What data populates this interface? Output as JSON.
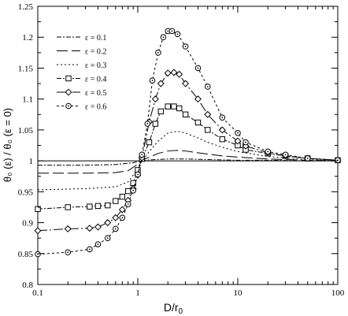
{
  "chart_data": {
    "type": "line",
    "xscale": "log",
    "xlim": [
      0.1,
      100
    ],
    "ylim": [
      0.8,
      1.25
    ],
    "xlabel_main": "D/r",
    "xlabel_sub": "0",
    "ylabel": "θ₀ (ε) / θ₀ (ε = 0)",
    "xticks": [
      0.1,
      1,
      10,
      100
    ],
    "xtick_labels": [
      "0.1",
      "1",
      "10",
      "100"
    ],
    "yticks": [
      0.8,
      0.85,
      0.9,
      0.95,
      1.0,
      1.05,
      1.1,
      1.15,
      1.2,
      1.25
    ],
    "ytick_labels": [
      "0.8",
      "0.85",
      "0.9",
      "0.95",
      "1",
      "1.05",
      "1.1",
      "1.15",
      "1.2",
      "1.25"
    ],
    "reference_line": 1.0,
    "grid": false,
    "legend_position": "top-left",
    "series": [
      {
        "name": "ε = 0.1",
        "dash": "6,2,2,2",
        "marker": "none",
        "x": [
          0.1,
          0.3,
          0.6,
          0.9,
          1.0,
          1.2,
          1.5,
          2.0,
          2.5,
          3.0,
          5.0,
          10,
          20,
          50,
          100
        ],
        "y": [
          0.993,
          0.993,
          0.994,
          0.997,
          0.999,
          1.001,
          1.002,
          1.003,
          1.003,
          1.003,
          1.002,
          1.001,
          1.001,
          1.0,
          1.0
        ]
      },
      {
        "name": "ε = 0.2",
        "dash": "14,5",
        "marker": "none",
        "x": [
          0.1,
          0.3,
          0.6,
          0.8,
          0.95,
          1.1,
          1.3,
          1.6,
          2.0,
          2.5,
          3.0,
          4.0,
          5.0,
          7.0,
          10,
          20,
          50,
          100
        ],
        "y": [
          0.98,
          0.98,
          0.981,
          0.984,
          0.992,
          1.001,
          1.006,
          1.012,
          1.016,
          1.017,
          1.016,
          1.013,
          1.011,
          1.008,
          1.006,
          1.003,
          1.001,
          1.0
        ]
      },
      {
        "name": "ε = 0.3",
        "dash": "2,3",
        "marker": "none",
        "x": [
          0.1,
          0.3,
          0.6,
          0.8,
          0.95,
          1.1,
          1.3,
          1.6,
          2.0,
          2.5,
          3.0,
          4.0,
          5.0,
          7.0,
          10,
          20,
          50,
          100
        ],
        "y": [
          0.953,
          0.955,
          0.958,
          0.966,
          0.982,
          1.0,
          1.015,
          1.032,
          1.045,
          1.048,
          1.045,
          1.037,
          1.03,
          1.022,
          1.015,
          1.007,
          1.002,
          1.0
        ]
      },
      {
        "name": "ε = 0.4",
        "dash": "6,2,2,2",
        "marker": "square",
        "x": [
          0.1,
          0.2,
          0.33,
          0.4,
          0.5,
          0.6,
          0.7,
          0.8,
          0.9,
          1.0,
          1.1,
          1.3,
          1.5,
          1.7,
          2.0,
          2.3,
          2.6,
          3.0,
          4.0,
          5.0,
          7.0,
          10,
          12,
          20,
          30,
          50,
          100
        ],
        "y": [
          0.922,
          0.925,
          0.926,
          0.927,
          0.928,
          0.935,
          0.942,
          0.951,
          0.964,
          0.985,
          1.003,
          1.03,
          1.06,
          1.08,
          1.088,
          1.088,
          1.085,
          1.075,
          1.062,
          1.05,
          1.035,
          1.025,
          1.018,
          1.012,
          1.008,
          1.004,
          1.001
        ]
      },
      {
        "name": "ε = 0.5",
        "dash": "12,3,2,3",
        "marker": "diamond",
        "x": [
          0.1,
          0.2,
          0.33,
          0.4,
          0.5,
          0.6,
          0.7,
          0.8,
          0.9,
          1.0,
          1.1,
          1.3,
          1.5,
          1.7,
          2.0,
          2.3,
          2.6,
          3.0,
          4.0,
          5.0,
          7.0,
          10,
          12,
          20,
          30,
          50,
          100
        ],
        "y": [
          0.887,
          0.89,
          0.891,
          0.893,
          0.9,
          0.908,
          0.921,
          0.936,
          0.955,
          0.977,
          1.005,
          1.063,
          1.1,
          1.125,
          1.142,
          1.143,
          1.14,
          1.125,
          1.1,
          1.075,
          1.05,
          1.032,
          1.024,
          1.013,
          1.008,
          1.004,
          1.001
        ]
      },
      {
        "name": "ε = 0.6",
        "dash": "3,3",
        "marker": "circle",
        "x": [
          0.1,
          0.2,
          0.33,
          0.4,
          0.5,
          0.6,
          0.7,
          0.8,
          0.9,
          1.0,
          1.1,
          1.25,
          1.4,
          1.6,
          1.8,
          2.0,
          2.2,
          2.5,
          3.0,
          4.0,
          5.0,
          7.0,
          10,
          12,
          20,
          30,
          50,
          100
        ],
        "y": [
          0.849,
          0.852,
          0.857,
          0.865,
          0.875,
          0.89,
          0.908,
          0.93,
          0.952,
          0.978,
          1.01,
          1.06,
          1.13,
          1.175,
          1.2,
          1.21,
          1.21,
          1.205,
          1.185,
          1.15,
          1.12,
          1.07,
          1.045,
          1.03,
          1.015,
          1.01,
          1.004,
          1.001
        ]
      }
    ]
  }
}
